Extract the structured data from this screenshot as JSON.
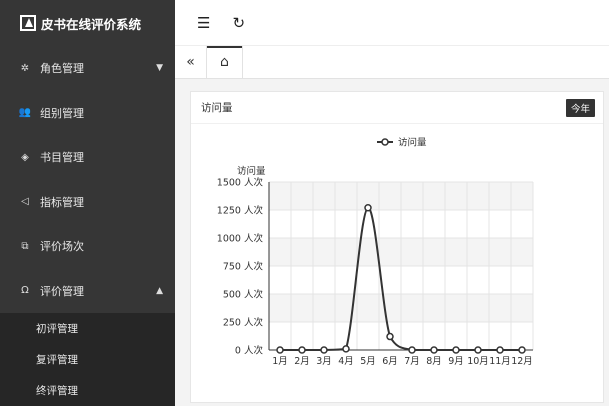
{
  "app": {
    "title": "皮书在线评价系统"
  },
  "sidebar": {
    "items": [
      {
        "label": "角色管理",
        "icon": "gear-icon",
        "glyph": "✲",
        "caret": "▼"
      },
      {
        "label": "组别管理",
        "icon": "users-icon",
        "glyph": "👥"
      },
      {
        "label": "书目管理",
        "icon": "layers-icon",
        "glyph": "◈"
      },
      {
        "label": "指标管理",
        "icon": "send-icon",
        "glyph": "◁"
      },
      {
        "label": "评价场次",
        "icon": "edit-icon",
        "glyph": "⧉"
      },
      {
        "label": "评价管理",
        "icon": "headset-icon",
        "glyph": "Ω",
        "caret": "▲"
      }
    ],
    "subitems": [
      "初评管理",
      "复评管理",
      "终评管理"
    ]
  },
  "topbar": {
    "menu_glyph": "☰",
    "refresh_glyph": "↻"
  },
  "tabs": {
    "back_glyph": "«",
    "home_glyph": "⌂"
  },
  "panel": {
    "title": "访问量",
    "badge": "今年"
  },
  "chart_data": {
    "type": "line",
    "legend": "访问量",
    "ylabel": "访问量",
    "categories": [
      "1月",
      "2月",
      "3月",
      "4月",
      "5月",
      "6月",
      "7月",
      "8月",
      "9月",
      "10月",
      "11月",
      "12月"
    ],
    "series": [
      {
        "name": "访问量",
        "values": [
          0,
          0,
          0,
          10,
          1270,
          120,
          0,
          0,
          0,
          0,
          0,
          0
        ]
      }
    ],
    "yticks": [
      "0 人次",
      "250 人次",
      "500 人次",
      "750 人次",
      "1000 人次",
      "1250 人次",
      "1500 人次"
    ],
    "ylim": [
      0,
      1500
    ],
    "grid": true,
    "color": "#333333"
  }
}
